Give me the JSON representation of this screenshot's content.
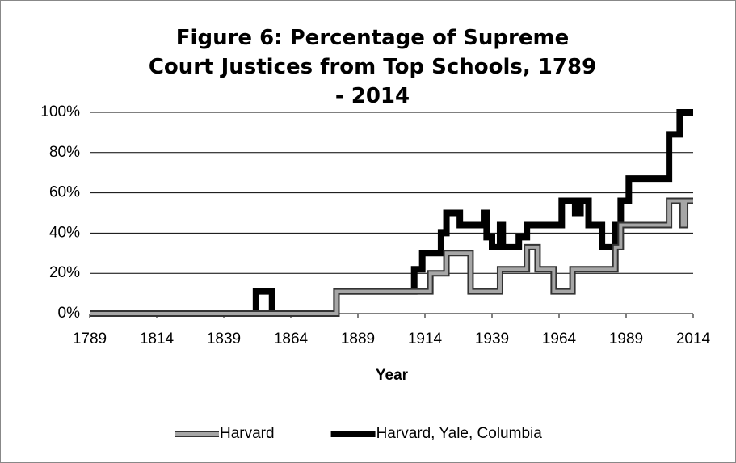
{
  "chart_data": {
    "type": "line",
    "title": "Figure 6: Percentage of Supreme Court Justices from Top Schools, 1789 - 2014",
    "x_label": "Year",
    "x": [
      1789,
      1851,
      1851,
      1857,
      1857,
      1881,
      1881,
      1910,
      1910,
      1913,
      1913,
      1916,
      1916,
      1920,
      1920,
      1922,
      1922,
      1927,
      1927,
      1931,
      1931,
      1936,
      1936,
      1937,
      1937,
      1939,
      1939,
      1942,
      1942,
      1943,
      1943,
      1949,
      1949,
      1952,
      1952,
      1956,
      1956,
      1962,
      1962,
      1965,
      1965,
      1969,
      1969,
      1970,
      1970,
      1972,
      1972,
      1975,
      1975,
      1980,
      1980,
      1985,
      1985,
      1987,
      1987,
      1990,
      1990,
      2005,
      2005,
      2009,
      2009,
      2010,
      2010,
      2011,
      2011,
      2014
    ],
    "series": [
      {
        "name": "Harvard",
        "color": "#a6a6a6",
        "values": [
          0,
          0,
          0,
          0,
          0,
          0,
          11,
          11,
          11,
          11,
          11,
          11,
          20,
          20,
          20,
          20,
          30,
          30,
          30,
          30,
          11,
          11,
          11,
          11,
          11,
          11,
          11,
          11,
          22,
          22,
          22,
          22,
          22,
          22,
          33,
          33,
          22,
          22,
          11,
          11,
          11,
          11,
          22,
          22,
          22,
          22,
          22,
          22,
          22,
          22,
          22,
          22,
          33,
          33,
          44,
          44,
          44,
          44,
          56,
          56,
          56,
          56,
          44,
          44,
          56,
          56
        ]
      },
      {
        "name": "Harvard, Yale, Columbia",
        "color": "#000000",
        "values": [
          0,
          0,
          11,
          11,
          0,
          0,
          11,
          11,
          22,
          22,
          30,
          30,
          30,
          30,
          40,
          40,
          50,
          50,
          44,
          44,
          44,
          44,
          50,
          50,
          38,
          38,
          33,
          33,
          44,
          44,
          33,
          33,
          38,
          38,
          44,
          44,
          44,
          44,
          44,
          44,
          56,
          56,
          56,
          56,
          50,
          50,
          56,
          56,
          44,
          44,
          33,
          33,
          44,
          44,
          56,
          56,
          67,
          67,
          89,
          89,
          100,
          100,
          100,
          100,
          100,
          100
        ]
      }
    ],
    "xlim": [
      1789,
      2014
    ],
    "xticks": [
      1789,
      1814,
      1839,
      1864,
      1889,
      1914,
      1939,
      1964,
      1989,
      2014
    ],
    "ylim": [
      0,
      100
    ],
    "yticks": [
      {
        "value": 0,
        "label": "0%"
      },
      {
        "value": 20,
        "label": "20%"
      },
      {
        "value": 40,
        "label": "40%"
      },
      {
        "value": 60,
        "label": "60%"
      },
      {
        "value": 80,
        "label": "80%"
      },
      {
        "value": 100,
        "label": "100%"
      }
    ],
    "grid": true
  }
}
